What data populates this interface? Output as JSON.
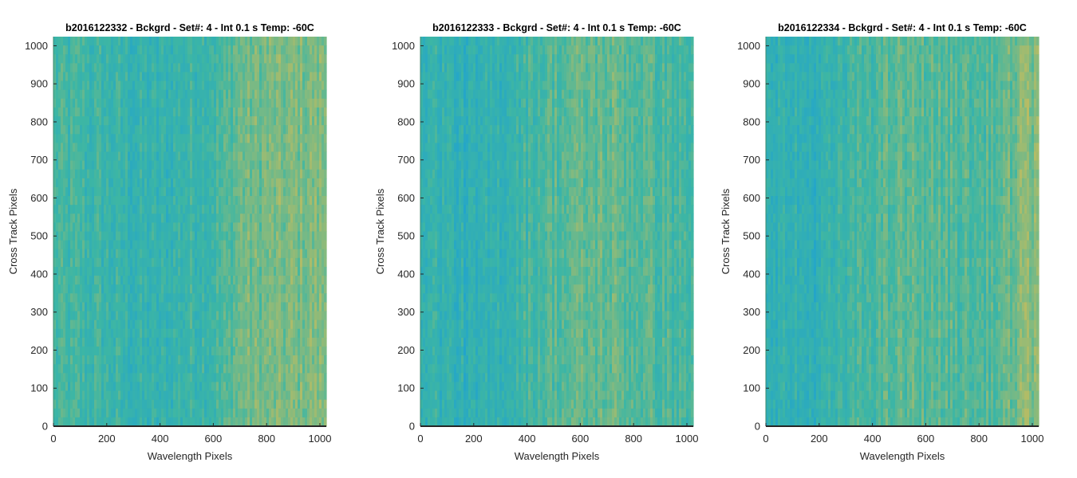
{
  "chart_data": [
    {
      "type": "heatmap",
      "title": "b2016122332 - Bckgrd - Set#: 4 - Int 0.1 s Temp: -60C",
      "xlabel": "Wavelength Pixels",
      "ylabel": "Cross Track Pixels",
      "xlim": [
        0,
        1024
      ],
      "ylim": [
        0,
        1024
      ],
      "xticks": [
        0,
        200,
        400,
        600,
        800,
        1000
      ],
      "yticks": [
        0,
        100,
        200,
        300,
        400,
        500,
        600,
        700,
        800,
        900,
        1000
      ],
      "colormap": "parula",
      "colors": {
        "low": "#1a9fd8",
        "mid": "#3db6a4",
        "high": "#c6bd5c"
      },
      "column_profile": {
        "x": [
          0,
          100,
          200,
          300,
          400,
          500,
          600,
          650,
          700,
          800,
          900,
          1024
        ],
        "level": [
          0.5,
          0.48,
          0.45,
          0.4,
          0.38,
          0.45,
          0.5,
          0.55,
          0.68,
          0.7,
          0.72,
          0.75
        ]
      }
    },
    {
      "type": "heatmap",
      "title": "b2016122333 - Bckgrd - Set#: 4 - Int 0.1 s Temp: -60C",
      "xlabel": "Wavelength Pixels",
      "ylabel": "Cross Track Pixels",
      "xlim": [
        0,
        1024
      ],
      "ylim": [
        0,
        1024
      ],
      "xticks": [
        0,
        200,
        400,
        600,
        800,
        1000
      ],
      "yticks": [
        0,
        100,
        200,
        300,
        400,
        500,
        600,
        700,
        800,
        900,
        1000
      ],
      "colormap": "parula",
      "colors": {
        "low": "#1a9fd8",
        "mid": "#3db6a4",
        "high": "#c6bd5c"
      },
      "column_profile": {
        "x": [
          0,
          100,
          200,
          300,
          400,
          500,
          600,
          700,
          800,
          900,
          1024
        ],
        "level": [
          0.45,
          0.38,
          0.3,
          0.4,
          0.5,
          0.58,
          0.62,
          0.65,
          0.6,
          0.55,
          0.5
        ]
      }
    },
    {
      "type": "heatmap",
      "title": "b2016122334 - Bckgrd - Set#: 4 - Int 0.1 s Temp: -60C",
      "xlabel": "Wavelength Pixels",
      "ylabel": "Cross Track Pixels",
      "xlim": [
        0,
        1024
      ],
      "ylim": [
        0,
        1024
      ],
      "xticks": [
        0,
        200,
        400,
        600,
        800,
        1000
      ],
      "yticks": [
        0,
        100,
        200,
        300,
        400,
        500,
        600,
        700,
        800,
        900,
        1000
      ],
      "colormap": "parula",
      "colors": {
        "low": "#1a9fd8",
        "mid": "#3db6a4",
        "high": "#c6bd5c"
      },
      "column_profile": {
        "x": [
          0,
          100,
          200,
          300,
          400,
          500,
          600,
          700,
          800,
          900,
          950,
          1024
        ],
        "level": [
          0.42,
          0.35,
          0.35,
          0.45,
          0.55,
          0.6,
          0.6,
          0.58,
          0.55,
          0.62,
          0.72,
          0.78
        ]
      }
    }
  ]
}
